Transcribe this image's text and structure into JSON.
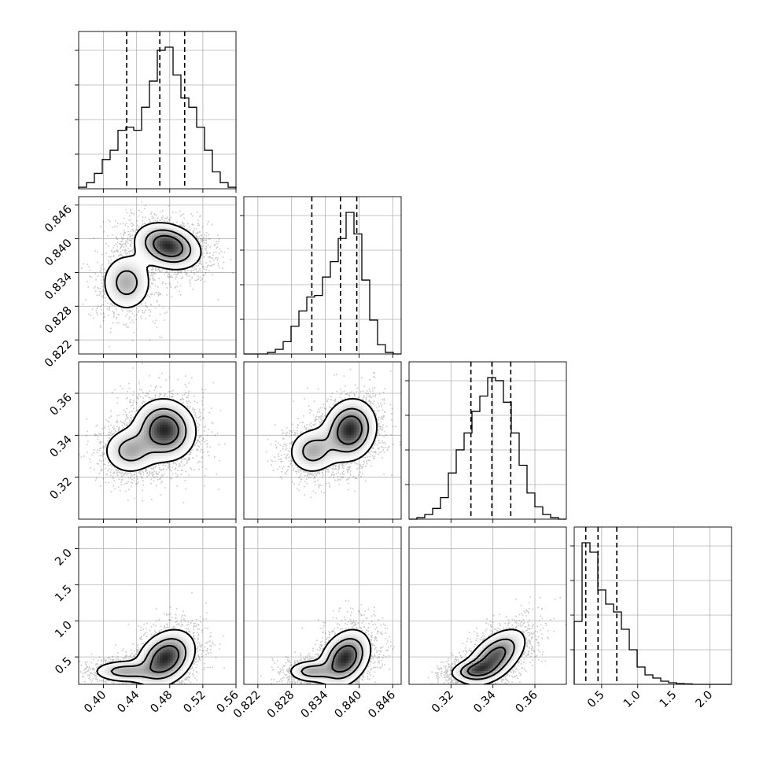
{
  "chart_data": {
    "type": "corner",
    "n_params": 4,
    "grid": true,
    "params": [
      {
        "range": [
          0.37,
          0.56
        ],
        "ticks": [
          "0.40",
          "0.44",
          "0.48",
          "0.52",
          "0.56"
        ],
        "quantiles": [
          0.428,
          0.468,
          0.498
        ],
        "hist": [
          1,
          4,
          10,
          19,
          25,
          38,
          40,
          38,
          53,
          70,
          90,
          92,
          74,
          59,
          53,
          40,
          25,
          11,
          4,
          1
        ]
      },
      {
        "range": [
          0.8195,
          0.8475
        ],
        "ticks": [
          "0.822",
          "0.828",
          "0.834",
          "0.840",
          "0.846"
        ],
        "quantiles": [
          0.8316,
          0.8367,
          0.8396
        ],
        "hist": [
          0,
          0,
          0,
          1,
          3,
          8,
          18,
          28,
          37,
          38,
          50,
          60,
          75,
          92,
          78,
          48,
          22,
          6,
          1,
          0
        ]
      },
      {
        "range": [
          0.3,
          0.375
        ],
        "ticks": [
          "0.32",
          "0.34",
          "0.36"
        ],
        "quantiles": [
          0.3295,
          0.3395,
          0.3485
        ],
        "hist": [
          0,
          1,
          3,
          7,
          14,
          30,
          45,
          56,
          70,
          80,
          92,
          90,
          76,
          56,
          35,
          17,
          8,
          3,
          1,
          0
        ]
      },
      {
        "range": [
          0.12,
          2.3
        ],
        "ticks": [
          "0.5",
          "1.0",
          "1.5",
          "2.0"
        ],
        "quantiles": [
          0.28,
          0.45,
          0.71
        ],
        "hist": [
          40,
          90,
          84,
          60,
          51,
          46,
          35,
          22,
          11,
          6,
          4,
          2,
          1,
          0.5,
          0.3,
          0,
          0,
          0,
          0,
          0
        ]
      }
    ],
    "pairs": [
      {
        "row": 1,
        "col": 0,
        "blobs": [
          {
            "mx": 0.428,
            "my": 0.8322,
            "sx": 0.016,
            "sy": 0.0027,
            "r": 0.0,
            "w": 0.35
          },
          {
            "mx": 0.478,
            "my": 0.8387,
            "sx": 0.02,
            "sy": 0.0021,
            "r": -0.25,
            "w": 0.65
          }
        ]
      },
      {
        "row": 2,
        "col": 0,
        "blobs": [
          {
            "mx": 0.432,
            "my": 0.3325,
            "sx": 0.017,
            "sy": 0.0058,
            "r": 0.0,
            "w": 0.35
          },
          {
            "mx": 0.474,
            "my": 0.3425,
            "sx": 0.019,
            "sy": 0.0075,
            "r": -0.05,
            "w": 0.65
          }
        ]
      },
      {
        "row": 2,
        "col": 1,
        "blobs": [
          {
            "mx": 0.8318,
            "my": 0.3325,
            "sx": 0.0023,
            "sy": 0.0058,
            "r": 0.05,
            "w": 0.35
          },
          {
            "mx": 0.8384,
            "my": 0.3425,
            "sx": 0.0024,
            "sy": 0.0075,
            "r": 0.1,
            "w": 0.65
          }
        ]
      },
      {
        "row": 3,
        "col": 0,
        "blobs": [
          {
            "mx": 0.425,
            "my": 0.3,
            "sx": 0.02,
            "sy": 0.08,
            "r": 0.0,
            "w": 0.35
          },
          {
            "mx": 0.475,
            "my": 0.48,
            "sx": 0.018,
            "sy": 0.2,
            "r": 0.3,
            "w": 0.65
          }
        ]
      },
      {
        "row": 3,
        "col": 1,
        "blobs": [
          {
            "mx": 0.8315,
            "my": 0.3,
            "sx": 0.0022,
            "sy": 0.08,
            "r": 0.0,
            "w": 0.35
          },
          {
            "mx": 0.8375,
            "my": 0.48,
            "sx": 0.0023,
            "sy": 0.2,
            "r": 0.3,
            "w": 0.65
          }
        ]
      },
      {
        "row": 3,
        "col": 2,
        "blobs": [
          {
            "mx": 0.331,
            "my": 0.31,
            "sx": 0.006,
            "sy": 0.08,
            "r": 0.2,
            "w": 0.4
          },
          {
            "mx": 0.341,
            "my": 0.5,
            "sx": 0.0075,
            "sy": 0.2,
            "r": 0.55,
            "w": 0.6
          }
        ]
      }
    ]
  }
}
